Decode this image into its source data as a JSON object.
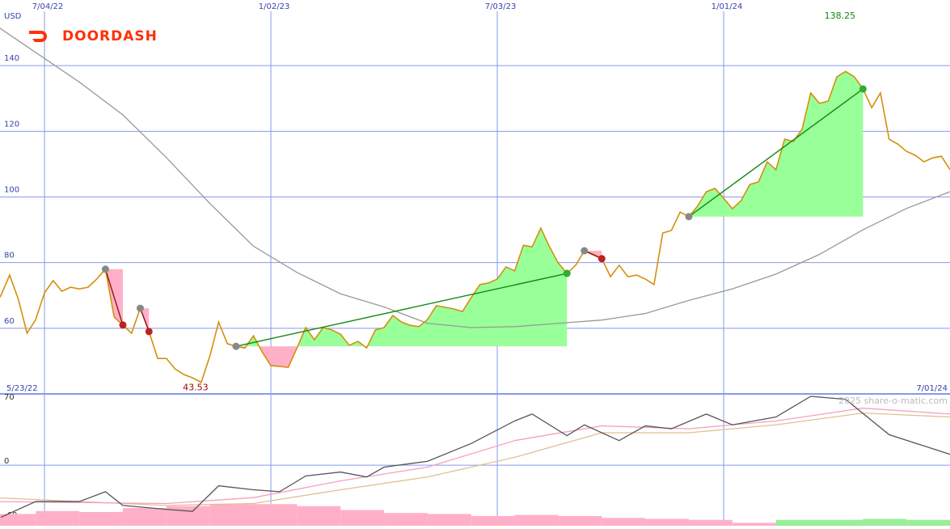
{
  "logo": "DOORDASH",
  "chart_data": {
    "type": "line",
    "currency": "USD",
    "color": "#d4900a",
    "categories": [
      null,
      null,
      null,
      null,
      null,
      null,
      "7/04/22",
      null,
      null,
      null,
      null,
      null,
      null,
      null,
      null,
      null,
      null,
      null,
      null,
      null,
      null,
      null,
      null,
      null,
      null,
      null,
      null,
      null,
      null,
      null,
      null,
      null,
      "1/02/23",
      null,
      null,
      null,
      null,
      null,
      null,
      null,
      null,
      null,
      null,
      null,
      null,
      null,
      null,
      null,
      null,
      null,
      null,
      null,
      null,
      null,
      null,
      null,
      null,
      null,
      "7/03/23",
      null,
      null,
      null,
      null,
      null,
      null,
      null,
      null,
      null,
      null,
      null,
      null,
      null,
      null,
      null,
      null,
      null,
      null,
      null,
      null,
      null,
      null,
      null,
      null,
      null,
      "1/01/24",
      null,
      null,
      null,
      null,
      null,
      null,
      null,
      null,
      null,
      null,
      null,
      null,
      null,
      null,
      null,
      null,
      null,
      null,
      null,
      null,
      null,
      null,
      null,
      null,
      null,
      null
    ],
    "range_labels": [
      "5/23/22",
      "7/01/24"
    ],
    "values": [
      66,
      70,
      76.2,
      68.8,
      58.5,
      62.7,
      70.8,
      74.5,
      71.3,
      72.5,
      72,
      72.5,
      75,
      78,
      63.4,
      61,
      58.5,
      66.1,
      59,
      50.8,
      50.8,
      47.6,
      45.9,
      44.9,
      43.53,
      51.6,
      61.9,
      55.3,
      54.5,
      54,
      57.7,
      52.8,
      48.6,
      48.4,
      48.1,
      54,
      60.2,
      56.5,
      60.2,
      59.5,
      58.2,
      54.8,
      56,
      54,
      59.5,
      60.2,
      63.9,
      61.9,
      60.9,
      60.5,
      62.7,
      66.9,
      66.4,
      65.9,
      65.1,
      69.3,
      73.3,
      73.8,
      75,
      78.7,
      77.5,
      85.3,
      84.8,
      90.5,
      84.8,
      79.9,
      76.7,
      79.2,
      83.6,
      82.6,
      81.2,
      75.7,
      79.2,
      75.7,
      76.2,
      75,
      73.3,
      89,
      89.8,
      95.4,
      94,
      97.2,
      101.6,
      102.6,
      99.6,
      96.4,
      98.9,
      103.8,
      104.6,
      110.7,
      108.3,
      117.6,
      116.9,
      120.6,
      131.7,
      128.5,
      129.2,
      136.6,
      138.25,
      136.6,
      132.9,
      127.2,
      131.7,
      117.6,
      116.1,
      113.9,
      112.7,
      110.7,
      111.9,
      112.4,
      108.3
    ],
    "value_labels": [
      {
        "index": 24,
        "label": "43.53",
        "color": "#990000"
      },
      {
        "index": 98,
        "label": "138.25",
        "color": "#118811"
      }
    ],
    "ylim": [
      40,
      160
    ],
    "yticks": [
      60,
      80,
      100,
      120,
      140
    ],
    "grid": true,
    "overlays": [
      {
        "color": "#999999",
        "x": [
          0,
          5,
          10,
          15,
          20,
          25,
          30,
          35,
          40,
          45,
          50,
          55,
          60,
          65,
          70,
          75,
          80,
          85,
          90,
          95,
          100,
          105,
          110
        ],
        "values": [
          153,
          144,
          135,
          125,
          112,
          98,
          85,
          77,
          70.5,
          66.5,
          61.5,
          60.2,
          60.5,
          61.5,
          62.5,
          64.5,
          68.5,
          72,
          76.5,
          82.5,
          90,
          96.5,
          101.6
        ]
      }
    ],
    "trades": [
      {
        "start": 13,
        "end": 15
      },
      {
        "start": 17,
        "end": 18
      },
      {
        "start": 28,
        "end": 66
      },
      {
        "start": 68,
        "end": 70
      },
      {
        "start": 80,
        "end": 100
      }
    ],
    "indicator": {
      "ylim": [
        -60,
        70
      ],
      "yticks": [
        70,
        0,
        -60
      ],
      "watermark": "2025 share-o-matic.com",
      "series": [
        {
          "color": "#555555",
          "x": [
            1,
            5,
            10,
            13,
            15,
            20,
            23,
            26,
            30,
            33,
            36,
            40,
            43,
            45,
            50,
            55,
            60,
            62,
            66,
            68,
            72,
            75,
            78,
            82,
            85,
            90,
            94,
            98,
            103,
            110
          ],
          "values": [
            -53,
            -37,
            -37,
            -27,
            -41,
            -45,
            -47,
            -21,
            -25,
            -27,
            -11,
            -7,
            -12,
            -2,
            4,
            22,
            45,
            52,
            30,
            41,
            25,
            40,
            37,
            52,
            41,
            49,
            70,
            67,
            31,
            11
          ]
        },
        {
          "color": "#f4a0c0",
          "x": [
            0,
            20,
            30,
            40,
            50,
            60,
            70,
            80,
            90,
            100,
            110
          ],
          "values": [
            -37,
            -39,
            -33,
            -16,
            -2,
            25,
            40,
            37,
            45,
            58,
            52
          ]
        },
        {
          "color": "#e0c090",
          "x": [
            0,
            20,
            30,
            40,
            50,
            60,
            70,
            80,
            90,
            100,
            110
          ],
          "values": [
            -33,
            -41,
            -39,
            -25,
            -12,
            8,
            33,
            33,
            41,
            53,
            49
          ]
        }
      ],
      "histogram": {
        "width": 5,
        "x": [
          0,
          5,
          10,
          15,
          20,
          25,
          30,
          35,
          40,
          45,
          50,
          55,
          60,
          65,
          70,
          75,
          80,
          85,
          90,
          95,
          100,
          105
        ],
        "values": [
          -12,
          -15,
          -14,
          -18,
          -20,
          -22,
          -22,
          -20,
          -16,
          -13,
          -12,
          -10,
          -11,
          -10,
          -8,
          -7,
          -6,
          -3,
          6,
          6,
          7,
          6
        ]
      }
    }
  }
}
